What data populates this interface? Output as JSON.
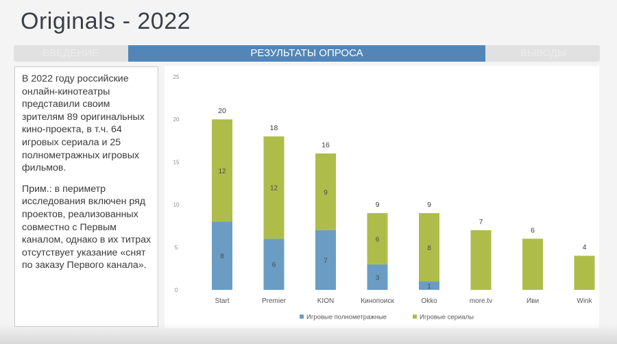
{
  "title": "Originals - 2022",
  "tabs": {
    "intro": "ВВЕДЕНИЕ",
    "active": "РЕЗУЛЬТАТЫ ОПРОСА",
    "conclusions": "ВЫВОДЫ"
  },
  "text": {
    "paragraph1": "В 2022 году российские онлайн-кинотеатры представили своим зрителям 89 оригинальных кино-проекта, в т.ч. 64 игровых сериала и 25 полнометражных игровых фильмов.",
    "paragraph2": "Прим.: в периметр исследования включен ряд проектов, реализованных совместно с Первым каналом, однако в их титрах отсутствует указание «снят по заказу Первого канала»."
  },
  "colors": {
    "accent": "#5286b8",
    "films": "#6b9dc4",
    "series": "#aebd4a"
  },
  "chart_data": {
    "type": "bar",
    "stacked": true,
    "categories": [
      "Start",
      "Premier",
      "KION",
      "Кинопоиск",
      "Okko",
      "more.tv",
      "Иви",
      "Wink"
    ],
    "series": [
      {
        "name": "Игровые полнометражные",
        "values": [
          8,
          6,
          7,
          3,
          1,
          0,
          0,
          0
        ],
        "color": "#6b9dc4"
      },
      {
        "name": "Игровые сериалы",
        "values": [
          12,
          12,
          9,
          6,
          8,
          7,
          6,
          4
        ],
        "color": "#aebd4a"
      }
    ],
    "totals": [
      20,
      18,
      16,
      9,
      9,
      7,
      6,
      4
    ],
    "ylim": [
      0,
      25
    ],
    "yticks": [
      0,
      5,
      10,
      15,
      20,
      25
    ],
    "grid": false,
    "legend": "bottom"
  }
}
